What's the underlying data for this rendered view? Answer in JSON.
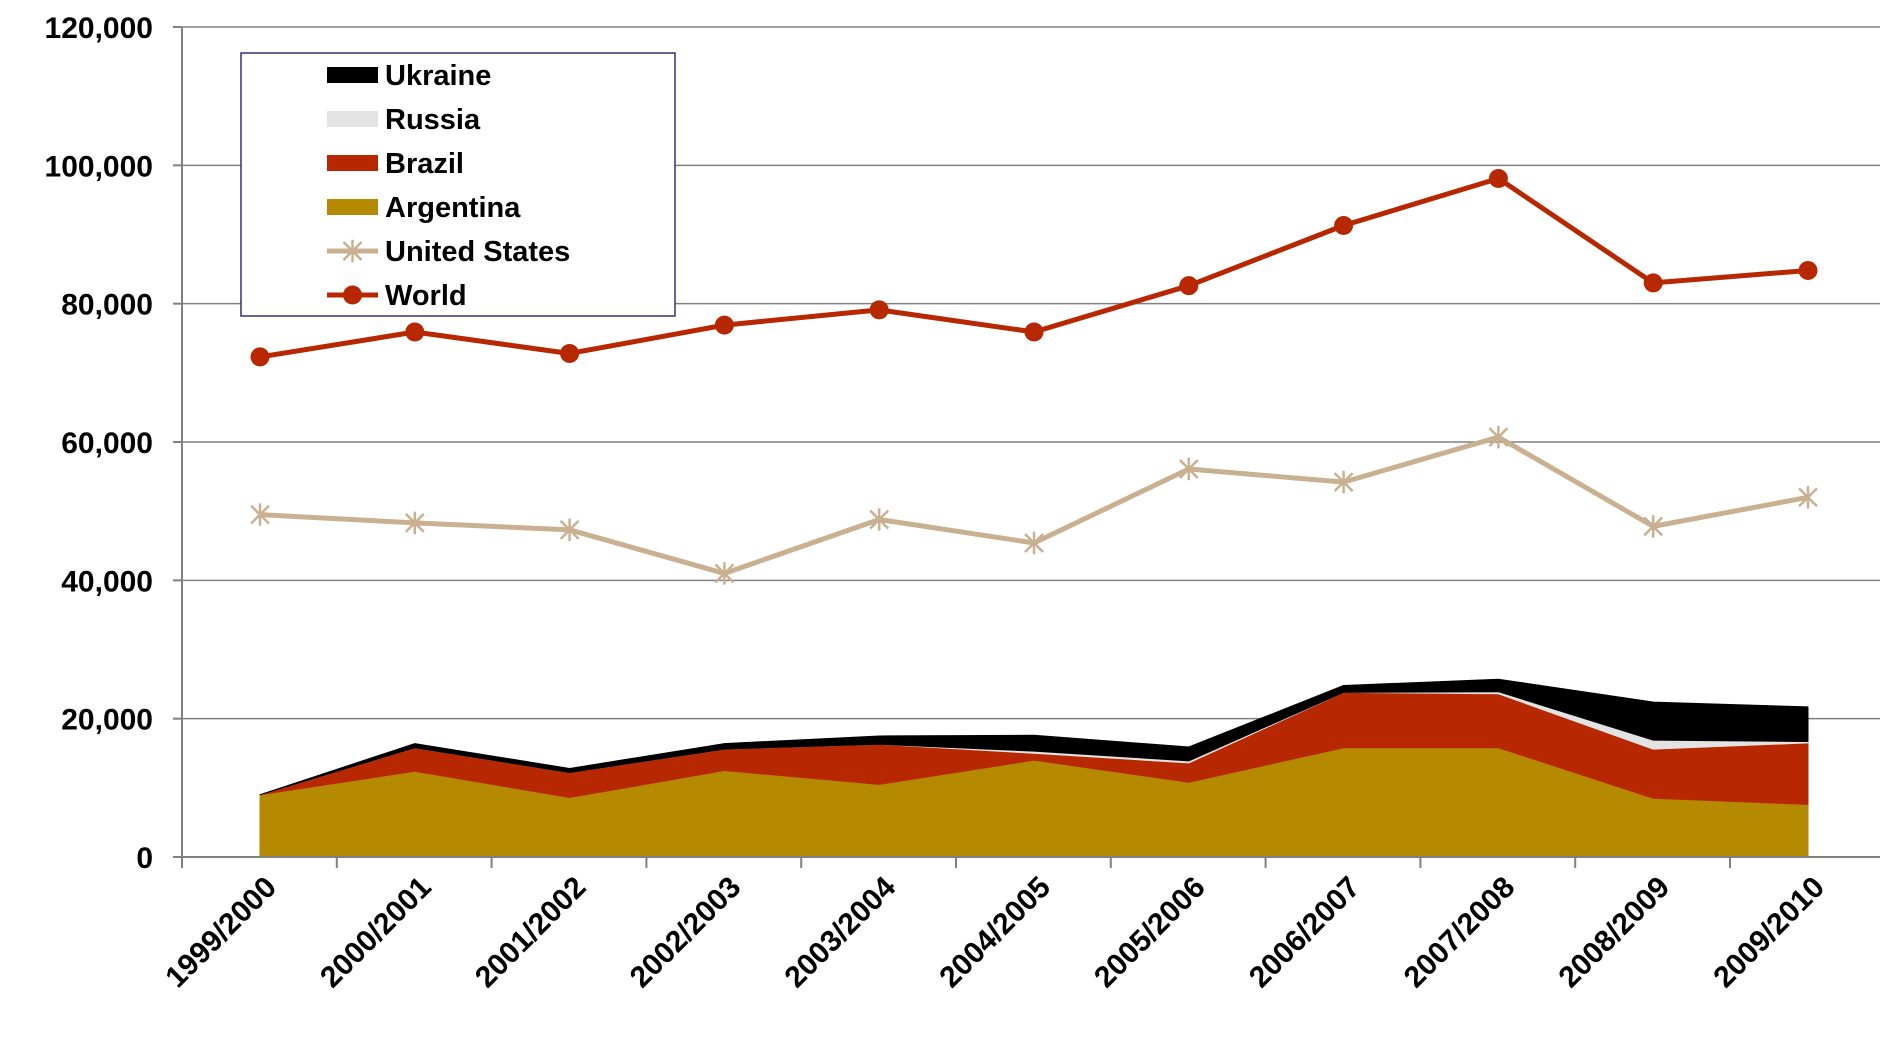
{
  "chart_data": {
    "type": "area",
    "title": "",
    "xlabel": "",
    "ylabel": "",
    "categories": [
      "1999/2000",
      "2000/2001",
      "2001/2002",
      "2002/2003",
      "2003/2004",
      "2004/2005",
      "2005/2006",
      "2006/2007",
      "2007/2008",
      "2008/2009",
      "2009/2010"
    ],
    "ylim": [
      0,
      120000
    ],
    "yticks": [
      "0",
      "20,000",
      "40,000",
      "60,000",
      "80,000",
      "100,000",
      "120,000"
    ],
    "grid": true,
    "legend_position": "top-left",
    "stacked_area_series": [
      {
        "name": "Argentina",
        "color": "#B58A00",
        "values": [
          9000,
          12400,
          8600,
          12500,
          10500,
          14000,
          10800,
          15800,
          15800,
          8500,
          7600
        ]
      },
      {
        "name": "Brazil",
        "color": "#B82800",
        "values": [
          0,
          3400,
          3600,
          3100,
          5800,
          1000,
          2800,
          8000,
          7800,
          7100,
          8900
        ]
      },
      {
        "name": "Russia",
        "color": "#E3E3E3",
        "values": [
          0,
          0,
          0,
          0,
          0,
          300,
          300,
          0,
          300,
          1300,
          200
        ]
      },
      {
        "name": "Ukraine",
        "color": "#000000",
        "values": [
          0,
          600,
          600,
          800,
          1200,
          2300,
          2000,
          1000,
          1800,
          5500,
          5000
        ]
      }
    ],
    "line_series": [
      {
        "name": "United States",
        "color": "#C8B090",
        "marker": "asterisk",
        "values": [
          49500,
          48300,
          47300,
          41000,
          48800,
          45400,
          56100,
          54200,
          60700,
          47800,
          52000
        ]
      },
      {
        "name": "World",
        "color": "#B82800",
        "marker": "circle",
        "values": [
          72300,
          75900,
          72800,
          76900,
          79100,
          75900,
          82600,
          91300,
          98100,
          83000,
          84800
        ]
      }
    ],
    "legend_order": [
      "Ukraine",
      "Russia",
      "Brazil",
      "Argentina",
      "United States",
      "World"
    ]
  }
}
